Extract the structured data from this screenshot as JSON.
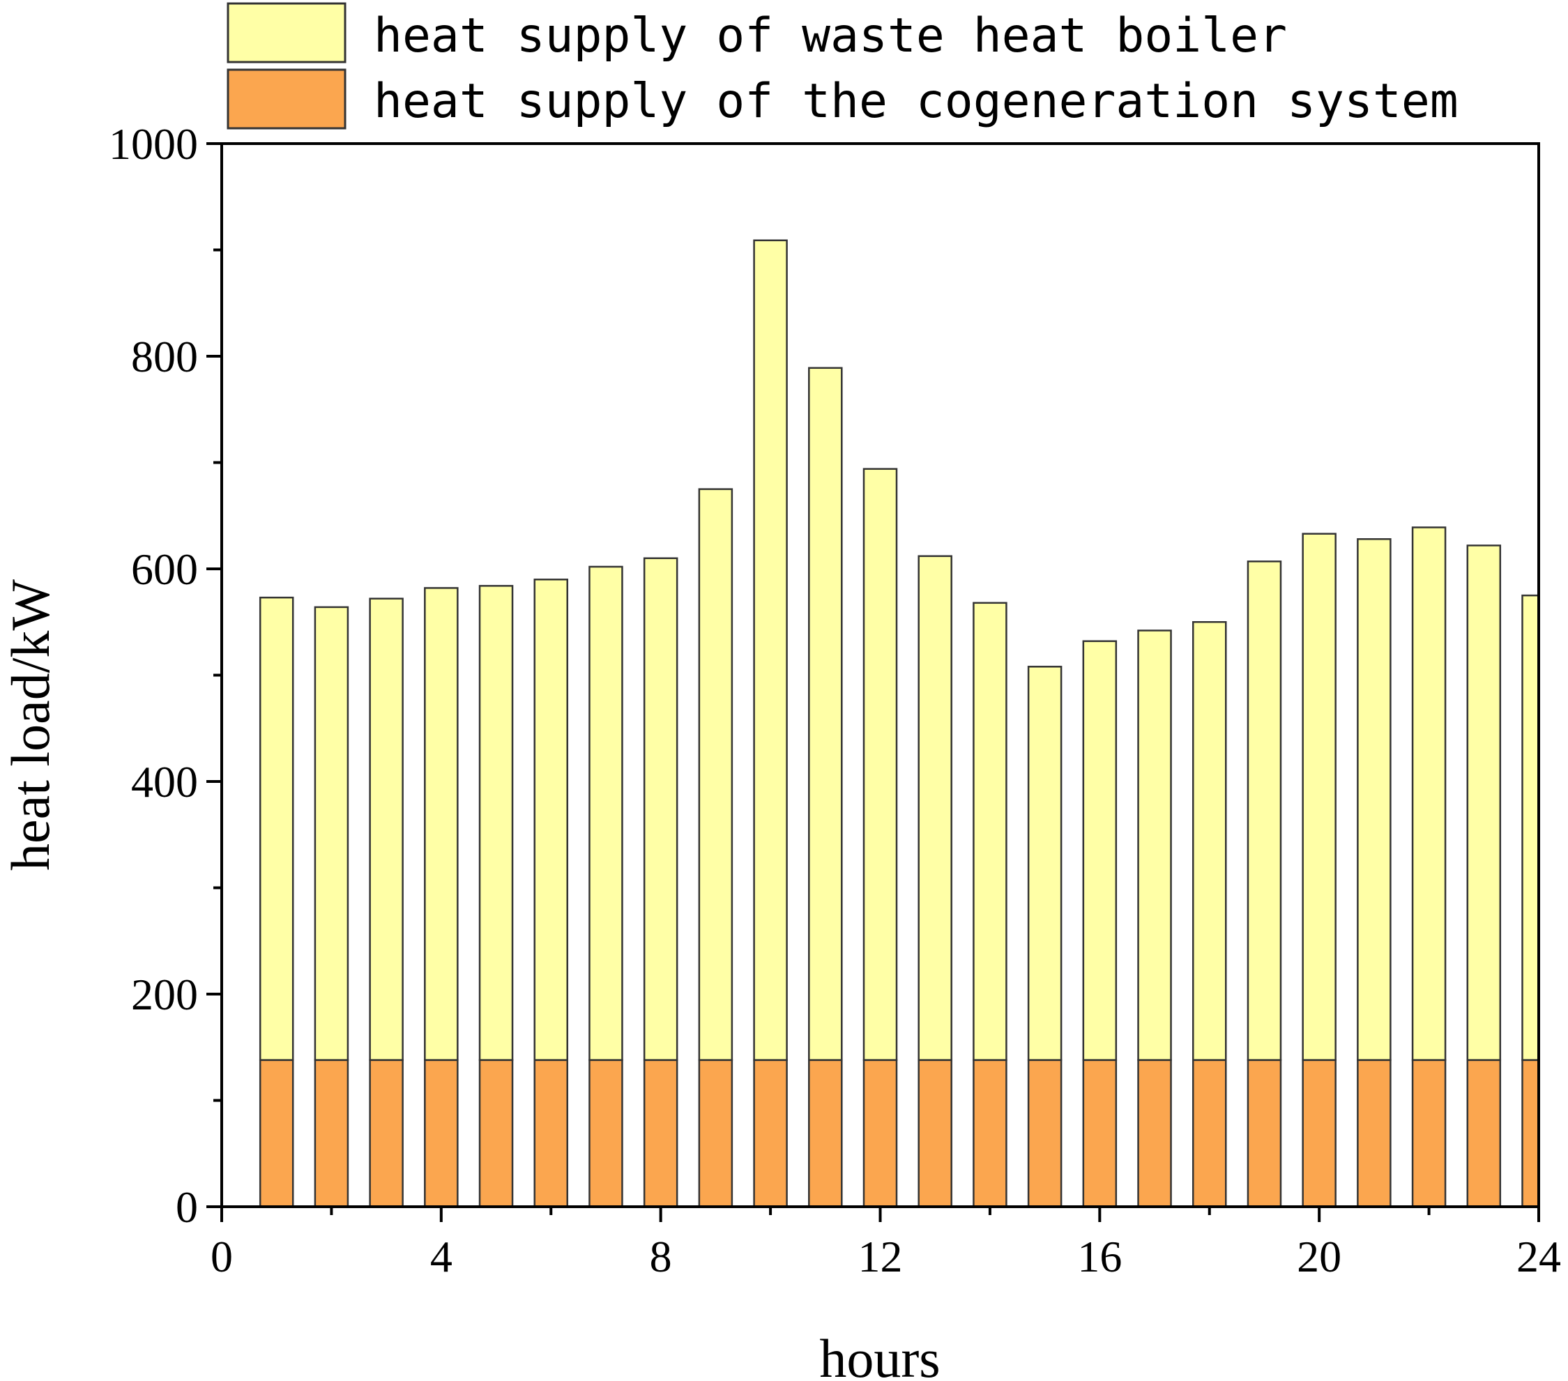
{
  "chart_data": {
    "type": "bar",
    "stacked": true,
    "xlabel": "hours",
    "ylabel": "heat load/kW",
    "xlim": [
      0,
      24
    ],
    "ylim": [
      0,
      1000
    ],
    "xticks": [
      0,
      4,
      8,
      12,
      16,
      20,
      24
    ],
    "yticks": [
      0,
      200,
      400,
      600,
      800,
      1000
    ],
    "x": [
      1,
      2,
      3,
      4,
      5,
      6,
      7,
      8,
      9,
      10,
      11,
      12,
      13,
      14,
      15,
      16,
      17,
      18,
      19,
      20,
      21,
      22,
      23,
      24
    ],
    "series": [
      {
        "name": "heat supply of the cogeneration system",
        "color": "#FBA64F",
        "values": [
          138,
          138,
          138,
          138,
          138,
          138,
          138,
          138,
          138,
          138,
          138,
          138,
          138,
          138,
          138,
          138,
          138,
          138,
          138,
          138,
          138,
          138,
          138,
          138
        ]
      },
      {
        "name": "heat supply of waste heat boiler",
        "color": "#FFFFA6",
        "values": [
          435,
          426,
          434,
          444,
          446,
          452,
          464,
          472,
          537,
          771,
          651,
          556,
          474,
          430,
          370,
          394,
          404,
          412,
          469,
          495,
          490,
          501,
          484,
          437
        ]
      }
    ],
    "legend": {
      "placement": "top",
      "entries": [
        "heat supply of waste heat boiler",
        "heat supply of the cogeneration system"
      ]
    },
    "grid": false
  }
}
